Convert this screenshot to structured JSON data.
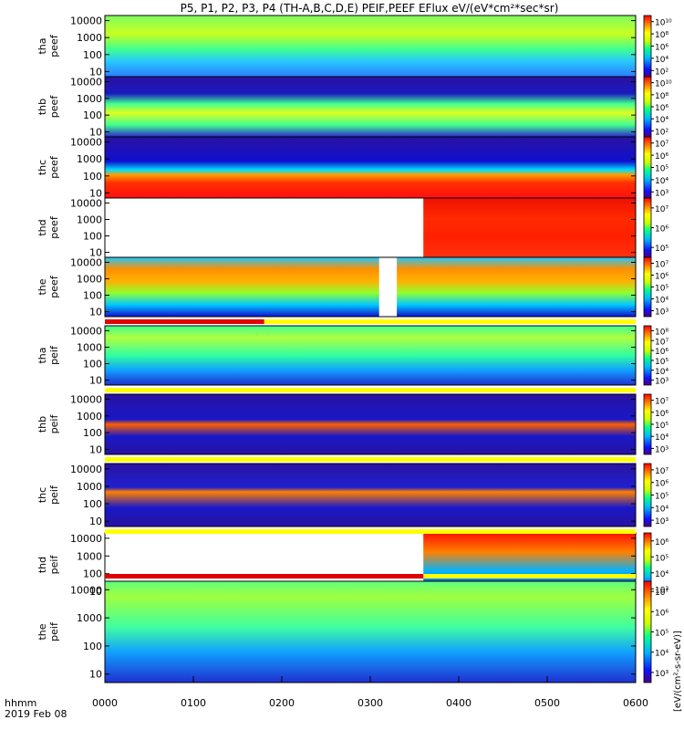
{
  "chart_data": [
    {
      "type": "heatmap",
      "probe": "tha",
      "quantity": "peef",
      "ylabel": "tha\npeef",
      "yticks": [
        "10",
        "100",
        "1000",
        "10000"
      ],
      "ylog": true,
      "ylim": [
        5,
        20000
      ],
      "colorbar": {
        "ticks": [
          "10²",
          "10⁴",
          "10⁶",
          "10⁸",
          "10¹⁰"
        ]
      }
    },
    {
      "type": "heatmap",
      "probe": "thb",
      "quantity": "peef",
      "ylabel": "thb\npeef",
      "yticks": [
        "10",
        "100",
        "1000",
        "10000"
      ],
      "ylog": true,
      "ylim": [
        5,
        20000
      ],
      "colorbar": {
        "ticks": [
          "10²",
          "10⁴",
          "10⁶",
          "10⁸",
          "10¹⁰"
        ]
      }
    },
    {
      "type": "heatmap",
      "probe": "thc",
      "quantity": "peef",
      "ylabel": "thc\npeef",
      "yticks": [
        "10",
        "100",
        "1000",
        "10000"
      ],
      "ylog": true,
      "ylim": [
        5,
        20000
      ],
      "colorbar": {
        "ticks": [
          "10³",
          "10⁴",
          "10⁵",
          "10⁶",
          "10⁷"
        ]
      }
    },
    {
      "type": "heatmap",
      "probe": "thd",
      "quantity": "peef",
      "ylabel": "thd\npeef",
      "yticks": [
        "10",
        "100",
        "1000",
        "10000"
      ],
      "ylog": true,
      "ylim": [
        5,
        20000
      ],
      "data_start": "0336",
      "colorbar": {
        "ticks": [
          "10⁵",
          "10⁶",
          "10⁷"
        ]
      }
    },
    {
      "type": "heatmap",
      "probe": "the",
      "quantity": "peef",
      "ylabel": "the\npeef",
      "yticks": [
        "10",
        "100",
        "1000",
        "10000"
      ],
      "ylog": true,
      "ylim": [
        5,
        20000
      ],
      "data_gap": [
        "0306",
        "0318"
      ],
      "colorbar": {
        "ticks": [
          "10³",
          "10⁴",
          "10⁵",
          "10⁶",
          "10⁷"
        ]
      }
    },
    {
      "type": "heatmap",
      "probe": "tha",
      "quantity": "peif",
      "ylabel": "tha\npeif",
      "yticks": [
        "10",
        "100",
        "1000",
        "10000"
      ],
      "ylog": true,
      "ylim": [
        5,
        20000
      ],
      "colorbar": {
        "ticks": [
          "10³",
          "10⁴",
          "10⁵",
          "10⁶",
          "10⁷",
          "10⁸"
        ]
      }
    },
    {
      "type": "heatmap",
      "probe": "thb",
      "quantity": "peif",
      "ylabel": "thb\npeif",
      "yticks": [
        "10",
        "100",
        "1000",
        "10000"
      ],
      "ylog": true,
      "ylim": [
        5,
        20000
      ],
      "colorbar": {
        "ticks": [
          "10³",
          "10⁴",
          "10⁵",
          "10⁶",
          "10⁷"
        ]
      }
    },
    {
      "type": "heatmap",
      "probe": "thc",
      "quantity": "peif",
      "ylabel": "thc\npeif",
      "yticks": [
        "10",
        "100",
        "1000",
        "10000"
      ],
      "ylog": true,
      "ylim": [
        5,
        20000
      ],
      "colorbar": {
        "ticks": [
          "10³",
          "10⁴",
          "10⁵",
          "10⁶",
          "10⁷"
        ]
      }
    },
    {
      "type": "heatmap",
      "probe": "thd",
      "quantity": "peif",
      "ylabel": "thd\npeif",
      "yticks": [
        "10",
        "100",
        "1000",
        "10000"
      ],
      "ylog": true,
      "ylim": [
        5,
        20000
      ],
      "data_start": "0336",
      "colorbar": {
        "ticks": [
          "10³",
          "10⁴",
          "10⁵",
          "10⁶"
        ]
      }
    },
    {
      "type": "heatmap",
      "probe": "the",
      "quantity": "peif",
      "ylabel": "the\npeif",
      "yticks": [
        "10",
        "100",
        "1000",
        "10000"
      ],
      "ylog": true,
      "ylim": [
        5,
        20000
      ],
      "colorbar": {
        "ticks": [
          "10³",
          "10⁴",
          "10⁵",
          "10⁶",
          "10⁷"
        ]
      }
    }
  ],
  "title": "P5, P1, P2, P3, P4 (TH-A,B,C,D,E) PEIF,PEEF EFlux eV/(eV*cm²*sec*sr)",
  "units_label": "[eV/(cm²-s-sr-eV)]",
  "time_axis": {
    "label": "hhmm",
    "date": "2019 Feb 08",
    "ticks": [
      "0000",
      "0100",
      "0200",
      "0300",
      "0400",
      "0500",
      "0600"
    ],
    "xlim": [
      "0000",
      "0600"
    ]
  },
  "colors": {
    "background": "#ffffff",
    "axis": "#000000",
    "flag_red": "#ff0000",
    "flag_yellow": "#ffff00"
  }
}
